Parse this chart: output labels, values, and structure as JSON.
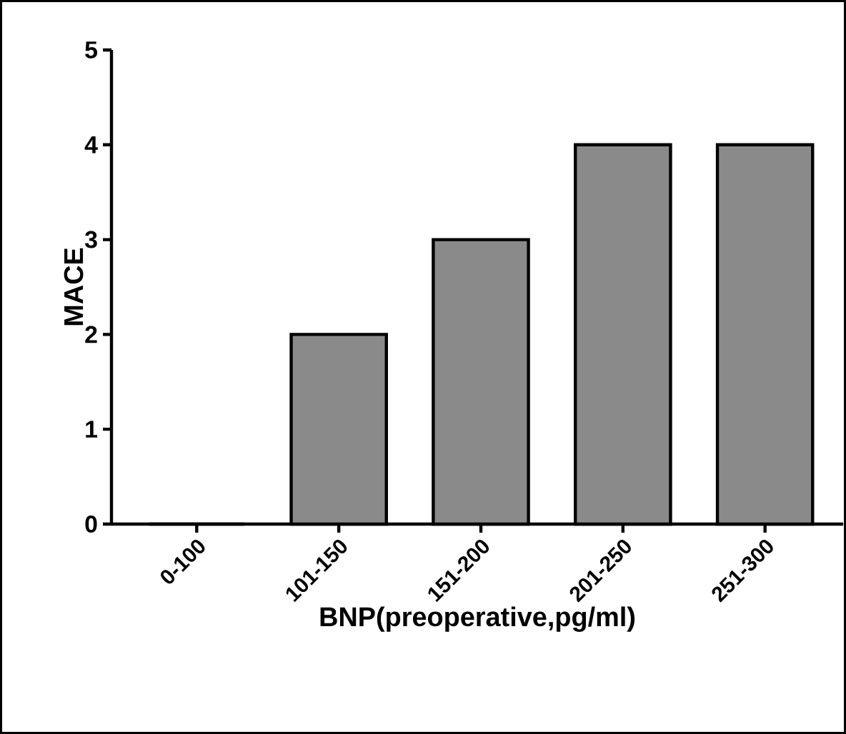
{
  "chart_data": {
    "type": "bar",
    "xlabel": "BNP(preoperative,pg/ml)",
    "ylabel": "MACE",
    "categories": [
      "0-100",
      "101-150",
      "151-200",
      "201-250",
      "251-300"
    ],
    "values": [
      0,
      2,
      3,
      4,
      4
    ],
    "color": "#8a8a8a",
    "ylim": [
      0,
      5
    ],
    "yticks": [
      0,
      1,
      2,
      3,
      4,
      5
    ]
  }
}
